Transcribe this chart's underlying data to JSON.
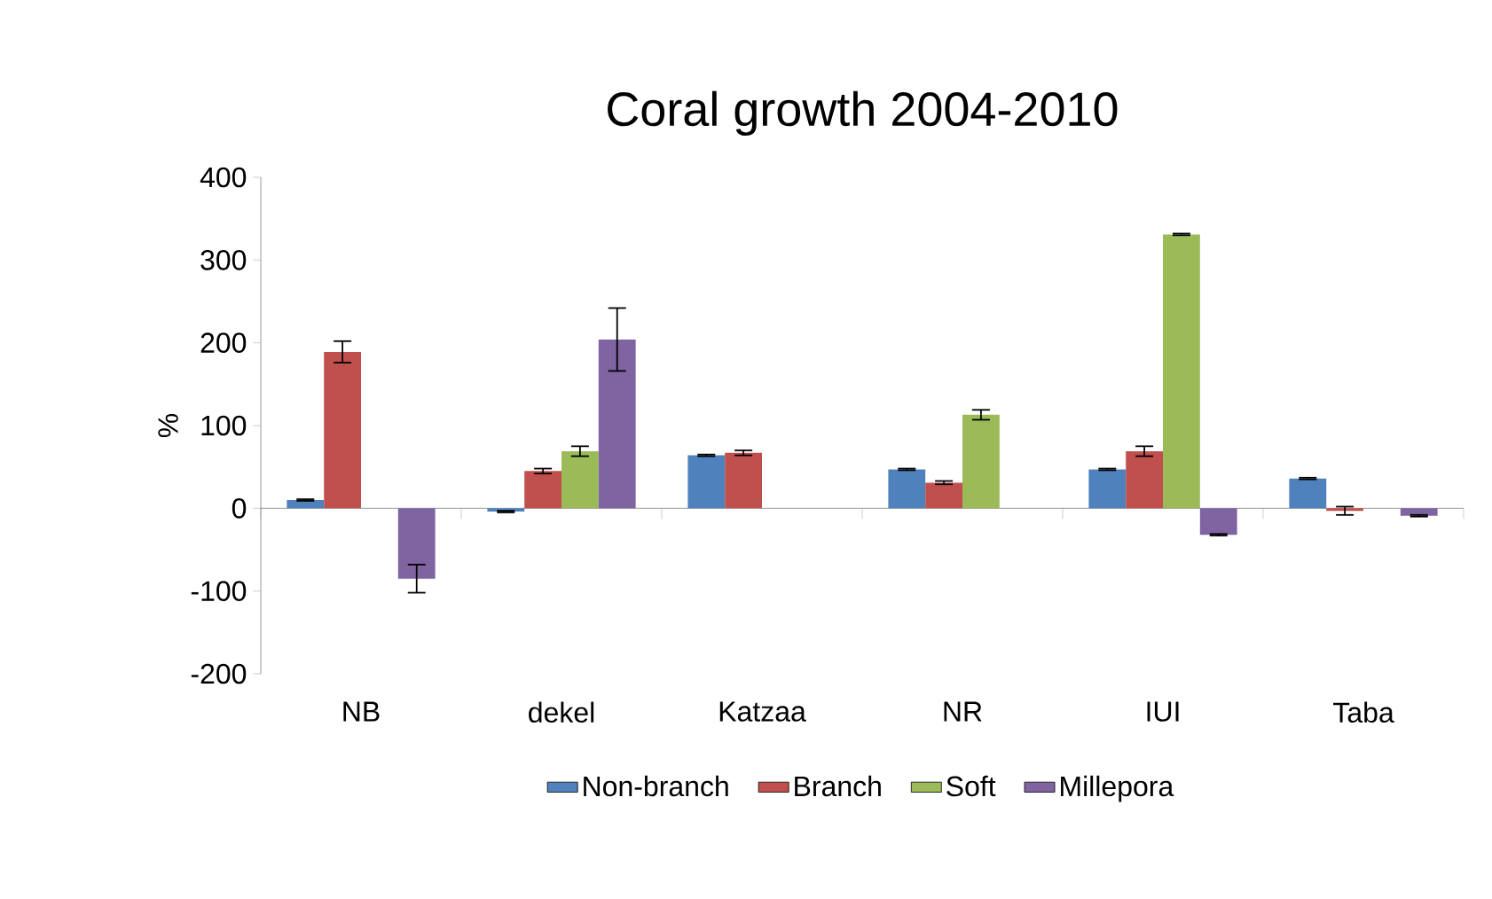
{
  "chart_data": {
    "type": "bar",
    "title": "Coral growth 2004-2010",
    "ylabel": "%",
    "categories": [
      "NB",
      "dekel",
      "Katzaa",
      "NR",
      "IUI",
      "Taba"
    ],
    "series": [
      {
        "name": "Non-branch",
        "color": "#4f81bd",
        "values": [
          10,
          -4,
          64,
          47,
          47,
          36
        ],
        "errors": [
          1,
          1,
          1,
          1,
          1,
          1
        ]
      },
      {
        "name": "Branch",
        "color": "#c0504d",
        "values": [
          189,
          45,
          67,
          31,
          69,
          -3
        ],
        "errors": [
          13,
          3,
          3,
          2,
          6,
          5
        ]
      },
      {
        "name": "Soft",
        "color": "#9bbb59",
        "values": [
          null,
          69,
          null,
          113,
          331,
          null
        ],
        "errors": [
          null,
          6,
          null,
          6,
          1,
          null
        ]
      },
      {
        "name": "Millepora",
        "color": "#8064a2",
        "values": [
          -85,
          204,
          null,
          null,
          -32,
          -9
        ],
        "errors": [
          17,
          38,
          null,
          null,
          1,
          1
        ]
      }
    ],
    "ylim": [
      -200,
      400
    ],
    "yticks": [
      -200,
      -100,
      0,
      100,
      200,
      300,
      400
    ],
    "legend": "bottom"
  }
}
